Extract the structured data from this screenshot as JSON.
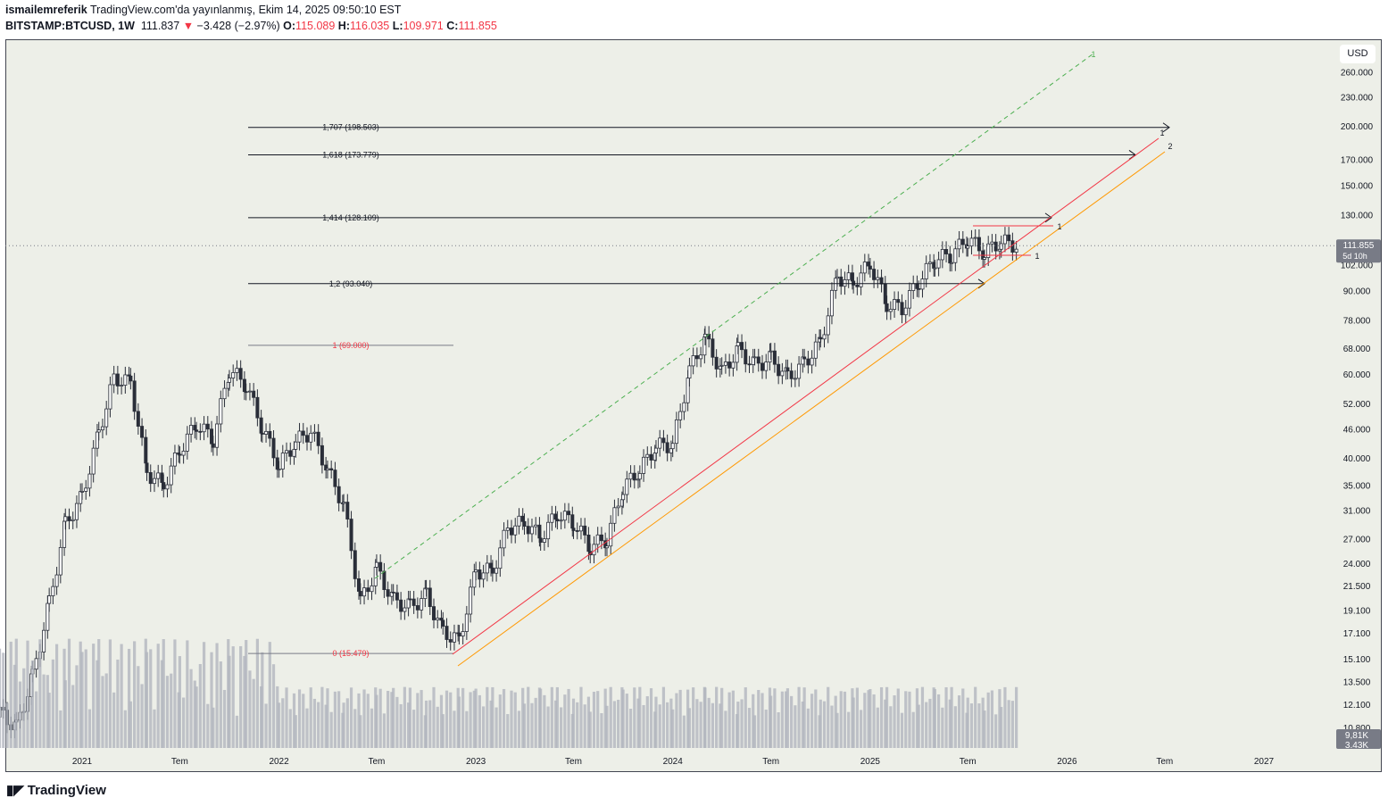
{
  "header": {
    "author": "ismailemreferik",
    "published": "TradingView.com'da yayınlanmış, Ekim 14, 2025 09:50:10 EST",
    "symbol": "BITSTAMP:BTCUSD, 1W",
    "last": "111.837",
    "change": "−3.428 (−2.97%)",
    "o_label": "O:",
    "o": "115.089",
    "h_label": "H:",
    "h": "116.035",
    "l_label": "L:",
    "l": "109.971",
    "c_label": "C:",
    "c": "111.855"
  },
  "currency": "USD",
  "logo": "TradingView",
  "chart_data": {
    "type": "candlestick",
    "interval": "1W",
    "scale": "log",
    "colors": {
      "up": "#ffffff",
      "down": "#2a2e39",
      "fib_0": "#f23645",
      "fib_other": "#131722",
      "trend_red": "#f23645",
      "trend_orange": "#ff9800",
      "trend_green": "#4caf50",
      "volume": "#b2b5be"
    },
    "monthly_close": [
      [
        "2020-08",
        11600
      ],
      [
        "2020-09",
        10800
      ],
      [
        "2020-10",
        13800
      ],
      [
        "2020-11",
        19700
      ],
      [
        "2020-12",
        29000
      ],
      [
        "2021-01",
        33100
      ],
      [
        "2021-02",
        45200
      ],
      [
        "2021-03",
        58800
      ],
      [
        "2021-04",
        57700
      ],
      [
        "2021-05",
        37300
      ],
      [
        "2021-06",
        35000
      ],
      [
        "2021-07",
        41500
      ],
      [
        "2021-08",
        47100
      ],
      [
        "2021-09",
        43800
      ],
      [
        "2021-10",
        61300
      ],
      [
        "2021-11",
        57000
      ],
      [
        "2021-12",
        46200
      ],
      [
        "2022-01",
        38500
      ],
      [
        "2022-02",
        43200
      ],
      [
        "2022-03",
        45500
      ],
      [
        "2022-04",
        37700
      ],
      [
        "2022-05",
        31800
      ],
      [
        "2022-06",
        19900
      ],
      [
        "2022-07",
        23300
      ],
      [
        "2022-08",
        20000
      ],
      [
        "2022-09",
        19400
      ],
      [
        "2022-10",
        20500
      ],
      [
        "2022-11",
        17200
      ],
      [
        "2022-12",
        16500
      ],
      [
        "2023-01",
        23100
      ],
      [
        "2023-02",
        23100
      ],
      [
        "2023-03",
        28500
      ],
      [
        "2023-04",
        29200
      ],
      [
        "2023-05",
        27200
      ],
      [
        "2023-06",
        30500
      ],
      [
        "2023-07",
        29200
      ],
      [
        "2023-08",
        26000
      ],
      [
        "2023-09",
        27000
      ],
      [
        "2023-10",
        34500
      ],
      [
        "2023-11",
        37700
      ],
      [
        "2023-12",
        42300
      ],
      [
        "2024-01",
        42600
      ],
      [
        "2024-02",
        61100
      ],
      [
        "2024-03",
        71300
      ],
      [
        "2024-04",
        60600
      ],
      [
        "2024-05",
        67500
      ],
      [
        "2024-06",
        62700
      ],
      [
        "2024-07",
        64600
      ],
      [
        "2024-08",
        59000
      ],
      [
        "2024-09",
        63300
      ],
      [
        "2024-10",
        70200
      ],
      [
        "2024-11",
        96400
      ],
      [
        "2024-12",
        93400
      ],
      [
        "2025-01",
        102400
      ],
      [
        "2025-02",
        84300
      ],
      [
        "2025-03",
        82500
      ],
      [
        "2025-04",
        94200
      ],
      [
        "2025-05",
        104600
      ],
      [
        "2025-06",
        107100
      ],
      [
        "2025-07",
        115700
      ],
      [
        "2025-08",
        108200
      ],
      [
        "2025-09",
        114000
      ],
      [
        "2025-10",
        111855
      ]
    ],
    "volume_labels": [
      "9,81K",
      "3.43K"
    ],
    "fib_levels": [
      {
        "ratio": 0,
        "price": 15479,
        "label": "0 (15.479)"
      },
      {
        "ratio": 1,
        "price": 69000,
        "label": "1 (69.000)"
      },
      {
        "ratio": 1.2,
        "price": 93040,
        "label": "1,2 (93.040)"
      },
      {
        "ratio": 1.414,
        "price": 128109,
        "label": "1,414 (128.109)"
      },
      {
        "ratio": 1.618,
        "price": 173779,
        "label": "1,618 (173.779)"
      },
      {
        "ratio": 1.707,
        "price": 198503,
        "label": "1,707 (198.503)"
      }
    ],
    "trend_labels": {
      "red": "1",
      "orange": "2",
      "green": "1",
      "range_top": "1",
      "range_bottom": "1"
    },
    "last_price": {
      "value": "111.855",
      "countdown": "5d 10h"
    },
    "y_ticks": [
      "260.000",
      "230.000",
      "200.000",
      "170.000",
      "150.000",
      "130.000",
      "102.000",
      "90.000",
      "78.000",
      "68.000",
      "60.000",
      "52.000",
      "46.000",
      "40.000",
      "35.000",
      "31.000",
      "27.000",
      "24.000",
      "21.500",
      "19.100",
      "17.100",
      "15.100",
      "13.500",
      "12.100",
      "10.800"
    ],
    "x_ticks": [
      [
        "2021",
        "2021-01-01"
      ],
      [
        "Tem",
        "2021-07-01"
      ],
      [
        "2022",
        "2022-01-01"
      ],
      [
        "Tem",
        "2022-07-01"
      ],
      [
        "2023",
        "2023-01-01"
      ],
      [
        "Tem",
        "2023-07-01"
      ],
      [
        "2024",
        "2024-01-01"
      ],
      [
        "Tem",
        "2024-07-01"
      ],
      [
        "2025",
        "2025-01-01"
      ],
      [
        "Tem",
        "2025-07-01"
      ],
      [
        "2026",
        "2026-01-01"
      ],
      [
        "Tem",
        "2026-07-01"
      ],
      [
        "2027",
        "2027-01-01"
      ]
    ]
  }
}
